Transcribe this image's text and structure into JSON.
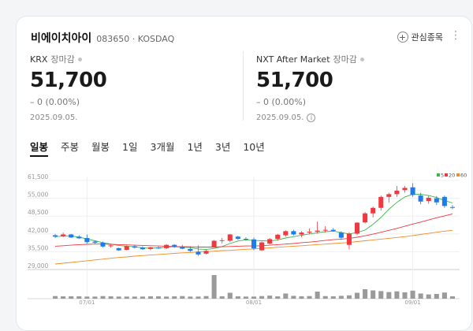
{
  "stock": {
    "name": "비에이치아이",
    "code": "083650",
    "market": "KOSDAQ"
  },
  "actions": {
    "watchlist_label": "관심종목",
    "more_icon": "more-vertical-icon"
  },
  "krx": {
    "label": "KRX",
    "sub": "장마감",
    "price": "51,700",
    "change": "– 0 (0.00%)",
    "date": "2025.09.05."
  },
  "nxt": {
    "label": "NXT After Market",
    "sub": "장마감",
    "price": "51,700",
    "change": "– 0 (0.00%)",
    "date": "2025.09.05."
  },
  "tabs": [
    "일봉",
    "주봉",
    "월봉",
    "1일",
    "3개월",
    "1년",
    "3년",
    "10년"
  ],
  "active_tab": 0,
  "colors": {
    "up": "#f0383e",
    "down": "#1e7be8",
    "ma5": "#3cb44b",
    "ma20": "#f0383e",
    "ma60": "#f08c28",
    "volume": "#9a9a9a"
  },
  "chart_data": {
    "type": "candlestick",
    "y_ticks": [
      "61,500",
      "55,000",
      "48,500",
      "42,000",
      "35,500",
      "29,000"
    ],
    "ylim": [
      29000,
      61500
    ],
    "x_tick_labels": [
      {
        "index": 4,
        "label": "07/01"
      },
      {
        "index": 25,
        "label": "08/01"
      },
      {
        "index": 45,
        "label": "09/01"
      }
    ],
    "legend": [
      "5",
      "20",
      "60"
    ],
    "candles": [
      [
        41500,
        42000,
        40500,
        41000
      ],
      [
        41200,
        42500,
        40800,
        41800
      ],
      [
        41800,
        42000,
        40500,
        40700
      ],
      [
        41000,
        41500,
        40200,
        40400
      ],
      [
        40500,
        41800,
        38500,
        39000
      ],
      [
        39200,
        39600,
        38400,
        38800
      ],
      [
        38800,
        39200,
        37000,
        37400
      ],
      [
        37500,
        38200,
        37000,
        37800
      ],
      [
        36800,
        37000,
        35800,
        36000
      ],
      [
        36200,
        37800,
        36000,
        37500
      ],
      [
        37500,
        38000,
        36700,
        37000
      ],
      [
        37000,
        37500,
        36200,
        36400
      ],
      [
        36500,
        37300,
        36000,
        37100
      ],
      [
        37000,
        37500,
        36500,
        36800
      ],
      [
        36800,
        38300,
        36500,
        38000
      ],
      [
        38000,
        38300,
        36900,
        37200
      ],
      [
        37300,
        38000,
        36400,
        36600
      ],
      [
        36500,
        37500,
        35400,
        35800
      ],
      [
        35500,
        37800,
        34000,
        34500
      ],
      [
        34800,
        36200,
        34500,
        35800
      ],
      [
        37000,
        39800,
        37000,
        39500
      ],
      [
        39500,
        40500,
        38500,
        39700
      ],
      [
        39500,
        42000,
        39000,
        41800
      ],
      [
        41000,
        41300,
        39800,
        40200
      ],
      [
        40200,
        40800,
        39500,
        40000
      ],
      [
        40000,
        40700,
        36000,
        36700
      ],
      [
        36000,
        39200,
        35800,
        38900
      ],
      [
        38500,
        40500,
        38200,
        40100
      ],
      [
        40200,
        42000,
        39500,
        41700
      ],
      [
        41500,
        43300,
        41000,
        43000
      ],
      [
        43000,
        43500,
        41400,
        41800
      ],
      [
        41800,
        43000,
        40800,
        42500
      ],
      [
        42500,
        44000,
        41800,
        42800
      ],
      [
        42800,
        46500,
        42100,
        43200
      ],
      [
        43200,
        44800,
        42500,
        43500
      ],
      [
        43500,
        44200,
        42800,
        43100
      ],
      [
        42500,
        43000,
        39800,
        40600
      ],
      [
        38000,
        42600,
        36300,
        42100
      ],
      [
        42100,
        46300,
        41600,
        46100
      ],
      [
        46200,
        50000,
        45800,
        49500
      ],
      [
        49500,
        52000,
        48000,
        51500
      ],
      [
        51500,
        56000,
        50500,
        55500
      ],
      [
        55500,
        57000,
        53500,
        56500
      ],
      [
        56500,
        59500,
        55500,
        57800
      ],
      [
        58000,
        59500,
        57000,
        58800
      ],
      [
        59000,
        60500,
        55500,
        56200
      ],
      [
        56000,
        57000,
        52800,
        53800
      ],
      [
        54000,
        56000,
        53000,
        55200
      ],
      [
        55000,
        55800,
        52500,
        53500
      ],
      [
        55500,
        56000,
        51500,
        52200
      ],
      [
        51800,
        52500,
        51000,
        51700
      ]
    ],
    "volume": [
      0.11,
      0.1,
      0.1,
      0.1,
      0.09,
      0.09,
      0.11,
      0.1,
      0.09,
      0.09,
      0.09,
      0.09,
      0.1,
      0.1,
      0.09,
      0.1,
      0.11,
      0.09,
      0.09,
      0.11,
      1.0,
      0.1,
      0.25,
      0.1,
      0.09,
      0.09,
      0.11,
      0.13,
      0.1,
      0.22,
      0.12,
      0.1,
      0.11,
      0.3,
      0.11,
      0.1,
      0.12,
      0.14,
      0.25,
      0.4,
      0.35,
      0.32,
      0.28,
      0.31,
      0.27,
      0.34,
      0.22,
      0.18,
      0.2,
      0.26,
      0.1
    ],
    "series": [
      {
        "name": "5",
        "color": "#3cb44b",
        "values": [
          41000,
          41200,
          41300,
          40800,
          40200,
          39500,
          38800,
          38300,
          37800,
          37500,
          37300,
          36900,
          36800,
          36900,
          37200,
          37300,
          37200,
          37000,
          36500,
          36300,
          36700,
          37400,
          38500,
          39400,
          39800,
          39600,
          39500,
          39400,
          39800,
          40500,
          41000,
          41500,
          42000,
          42400,
          42800,
          43000,
          42500,
          42000,
          42500,
          43400,
          45500,
          48000,
          51000,
          53500,
          55500,
          56500,
          56500,
          56000,
          55300,
          54200,
          53300
        ]
      },
      {
        "name": "20",
        "color": "#f0383e",
        "values": [
          37500,
          37700,
          37900,
          38100,
          38200,
          38300,
          38300,
          38200,
          38100,
          38000,
          37900,
          37800,
          37700,
          37600,
          37500,
          37400,
          37300,
          37300,
          37200,
          37200,
          37200,
          37300,
          37400,
          37500,
          37600,
          37600,
          37700,
          37900,
          38100,
          38300,
          38500,
          38800,
          39000,
          39300,
          39600,
          39900,
          40100,
          40400,
          40800,
          41300,
          41900,
          42600,
          43300,
          44000,
          44800,
          45600,
          46300,
          47100,
          47900,
          48600,
          49300
        ]
      },
      {
        "name": "60",
        "color": "#f08c28",
        "values": [
          31000,
          31300,
          31600,
          31900,
          32200,
          32500,
          32800,
          33100,
          33400,
          33600,
          33900,
          34100,
          34300,
          34500,
          34700,
          34900,
          35100,
          35200,
          35400,
          35500,
          35700,
          35900,
          36000,
          36200,
          36400,
          36500,
          36700,
          36900,
          37100,
          37300,
          37500,
          37700,
          37900,
          38100,
          38300,
          38500,
          38700,
          38900,
          39200,
          39500,
          39800,
          40100,
          40400,
          40700,
          41000,
          41400,
          41800,
          42200,
          42600,
          43000,
          43300
        ]
      }
    ]
  }
}
